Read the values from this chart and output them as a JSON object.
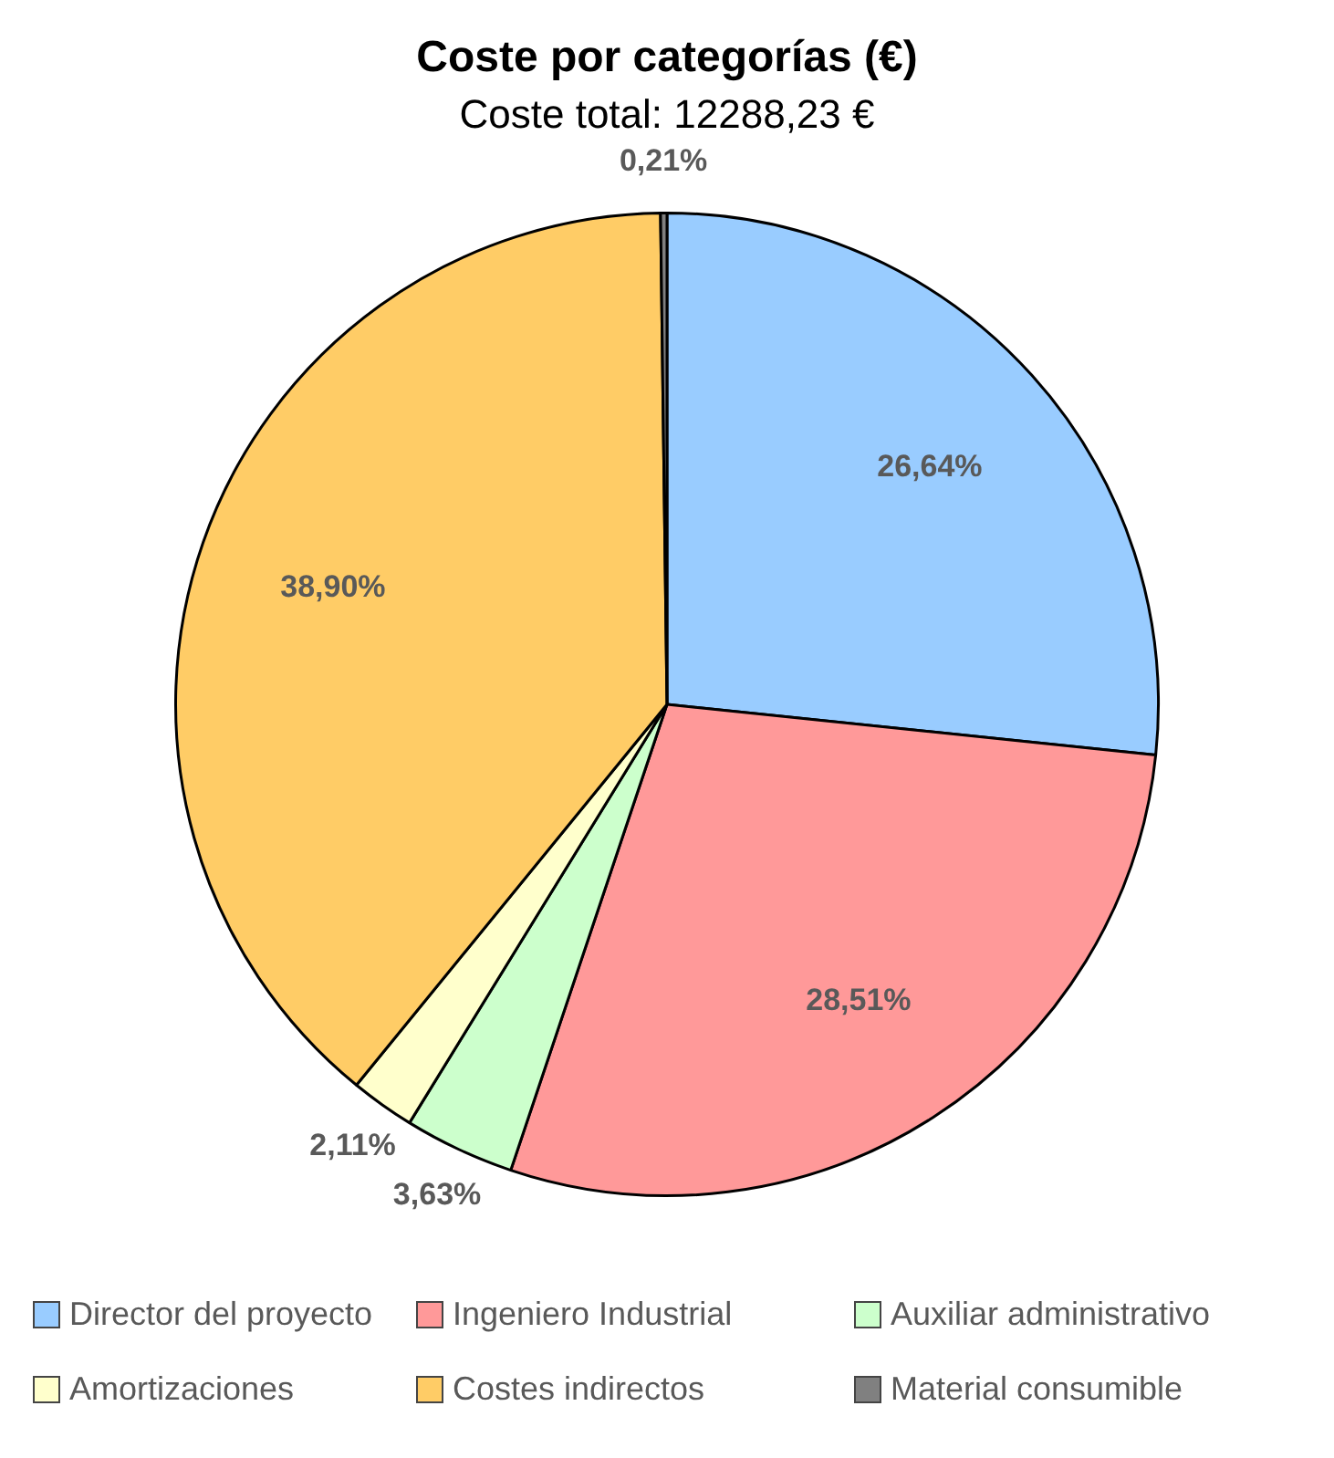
{
  "chart_data": {
    "type": "pie",
    "title": "Coste por categorías (€)",
    "subtitle": "Coste total: 12288,23 €",
    "categories": [
      "Director del proyecto",
      "Ingeniero Industrial",
      "Auxiliar administrativo",
      "Amortizaciones",
      "Costes indirectos",
      "Material consumible"
    ],
    "values": [
      26.64,
      28.51,
      3.63,
      2.11,
      38.9,
      0.21
    ],
    "colors": [
      "#99ccff",
      "#ff9999",
      "#ccffcc",
      "#ffffcc",
      "#ffcc66",
      "#808080"
    ],
    "value_labels": [
      "26,64%",
      "28,51%",
      "3,63%",
      "2,11%",
      "38,90%",
      "0,21%"
    ],
    "legend": "bottom"
  }
}
